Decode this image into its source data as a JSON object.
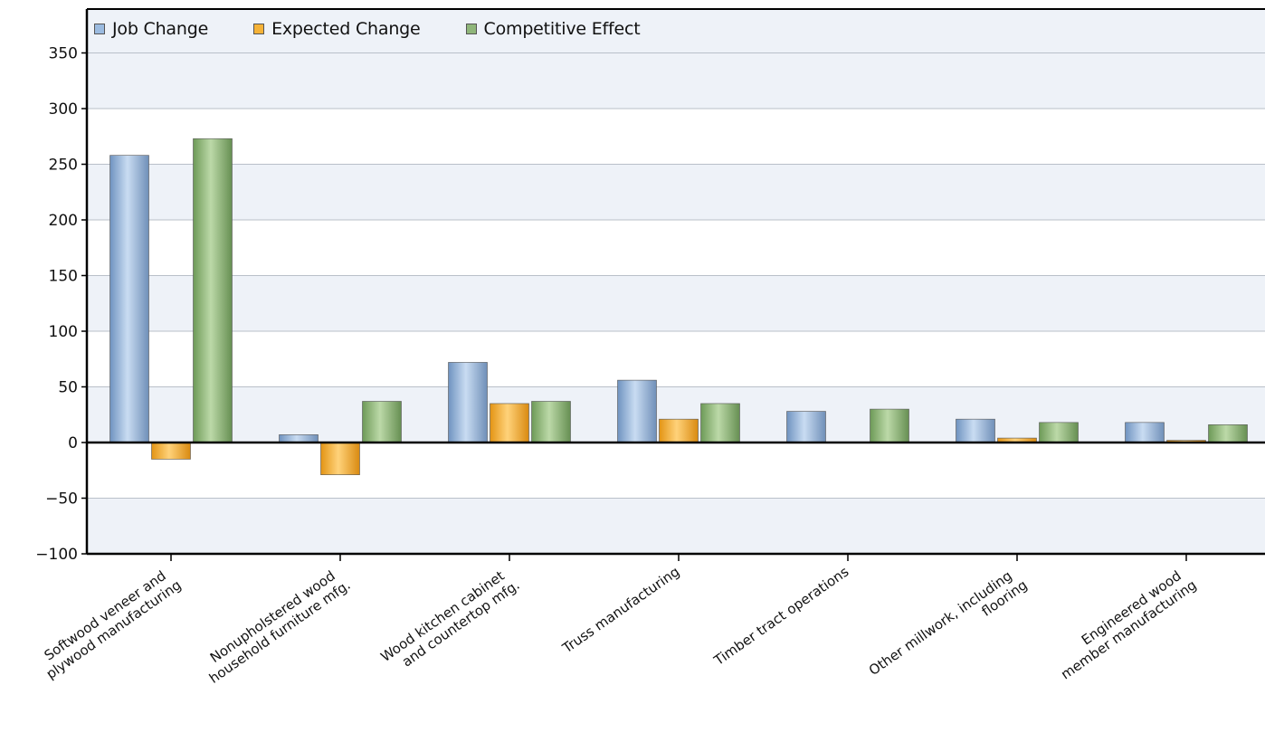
{
  "chart_data": {
    "type": "bar",
    "title": "",
    "xlabel": "",
    "ylabel": "",
    "ylim": [
      -100,
      350
    ],
    "yticks": [
      -100,
      -50,
      0,
      50,
      100,
      150,
      200,
      250,
      300,
      350
    ],
    "grid": true,
    "legend_position": "top-left",
    "categories": [
      [
        "Softwood veneer and",
        "plywood manufacturing"
      ],
      [
        "Nonupholstered wood",
        "household furniture mfg."
      ],
      [
        "Wood kitchen cabinet",
        "and countertop mfg."
      ],
      [
        "Truss manufacturing"
      ],
      [
        "Timber tract operations"
      ],
      [
        "Other millwork, including",
        "flooring"
      ],
      [
        "Engineered wood",
        "member manufacturing"
      ]
    ],
    "series": [
      {
        "name": "Job Change",
        "color": "#9bbbe0",
        "values": [
          258,
          7,
          72,
          56,
          28,
          21,
          18
        ]
      },
      {
        "name": "Expected Change",
        "color": "#f5b237",
        "values": [
          -15,
          -29,
          35,
          21,
          0,
          4,
          2
        ]
      },
      {
        "name": "Competitive Effect",
        "color": "#8fb67a",
        "values": [
          273,
          37,
          37,
          35,
          30,
          18,
          16
        ]
      }
    ]
  }
}
